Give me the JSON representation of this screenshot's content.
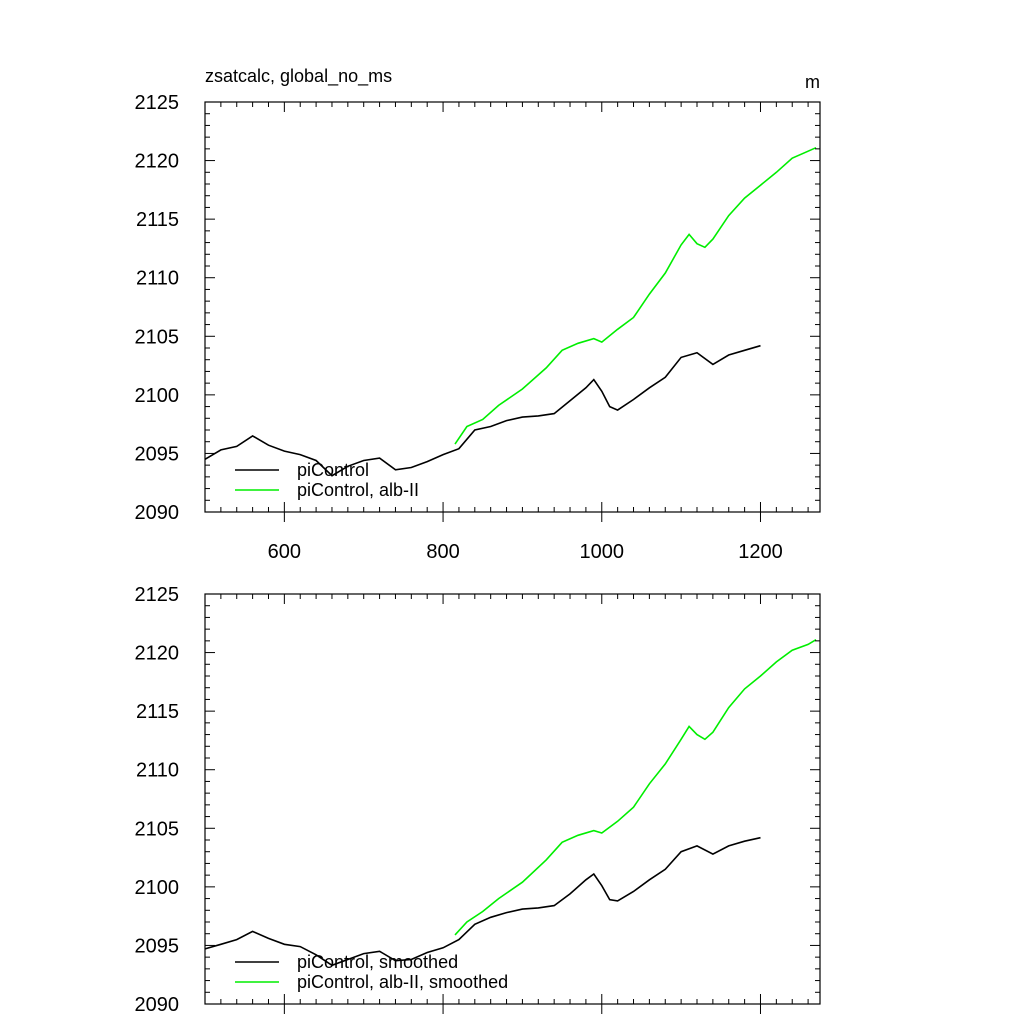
{
  "figure": {
    "title_left": "zsatcalc, global_no_ms",
    "title_right": "m"
  },
  "colors": {
    "piControl": "#000000",
    "alb_II": "#00ee00",
    "axis": "#000000"
  },
  "chart_data": [
    {
      "type": "line",
      "title": "",
      "xlabel": "",
      "ylabel": "",
      "xlim": [
        500,
        1275
      ],
      "ylim": [
        2090,
        2125
      ],
      "xticks": [
        600,
        800,
        1000,
        1200
      ],
      "yticks": [
        2090,
        2095,
        2100,
        2105,
        2110,
        2115,
        2120,
        2125
      ],
      "show_x_tick_labels": true,
      "grid": false,
      "legend_position": "bottom-left",
      "series": [
        {
          "name": "piControl",
          "color": "#000000",
          "x": [
            500,
            520,
            540,
            560,
            580,
            600,
            620,
            640,
            660,
            680,
            700,
            720,
            740,
            760,
            780,
            800,
            820,
            840,
            860,
            880,
            900,
            920,
            940,
            960,
            980,
            990,
            1000,
            1010,
            1020,
            1040,
            1060,
            1080,
            1100,
            1120,
            1140,
            1160,
            1180,
            1200
          ],
          "y": [
            2094.5,
            2095.3,
            2095.6,
            2096.5,
            2095.7,
            2095.2,
            2094.9,
            2094.4,
            2093.1,
            2093.9,
            2094.4,
            2094.6,
            2093.6,
            2093.8,
            2094.3,
            2094.9,
            2095.4,
            2097.0,
            2097.3,
            2097.8,
            2098.1,
            2098.2,
            2098.4,
            2099.5,
            2100.6,
            2101.3,
            2100.3,
            2099.0,
            2098.7,
            2099.6,
            2100.6,
            2101.5,
            2103.2,
            2103.6,
            2102.6,
            2103.4,
            2103.8,
            2104.2
          ]
        },
        {
          "name": "piControl, alb-II",
          "color": "#00ee00",
          "x": [
            815,
            830,
            850,
            870,
            900,
            930,
            950,
            970,
            990,
            1000,
            1020,
            1040,
            1060,
            1080,
            1100,
            1110,
            1120,
            1130,
            1140,
            1160,
            1180,
            1200,
            1220,
            1240,
            1260,
            1270
          ],
          "y": [
            2095.8,
            2097.3,
            2097.9,
            2099.1,
            2100.5,
            2102.3,
            2103.8,
            2104.4,
            2104.8,
            2104.5,
            2105.6,
            2106.6,
            2108.6,
            2110.4,
            2112.8,
            2113.7,
            2112.9,
            2112.6,
            2113.3,
            2115.3,
            2116.8,
            2117.9,
            2119.0,
            2120.2,
            2120.8,
            2121.1
          ]
        }
      ]
    },
    {
      "type": "line",
      "title": "",
      "xlabel": "",
      "ylabel": "",
      "xlim": [
        500,
        1275
      ],
      "ylim": [
        2090,
        2125
      ],
      "xticks": [
        600,
        800,
        1000,
        1200
      ],
      "yticks": [
        2090,
        2095,
        2100,
        2105,
        2110,
        2115,
        2120,
        2125
      ],
      "show_x_tick_labels": false,
      "grid": false,
      "legend_position": "bottom-left",
      "series": [
        {
          "name": "piControl, smoothed",
          "color": "#000000",
          "x": [
            500,
            520,
            540,
            560,
            580,
            600,
            620,
            640,
            660,
            680,
            700,
            720,
            740,
            760,
            780,
            800,
            820,
            840,
            860,
            880,
            900,
            920,
            940,
            960,
            980,
            990,
            1000,
            1010,
            1020,
            1040,
            1060,
            1080,
            1100,
            1120,
            1140,
            1160,
            1180,
            1200
          ],
          "y": [
            2094.7,
            2095.1,
            2095.5,
            2096.2,
            2095.6,
            2095.1,
            2094.9,
            2094.2,
            2093.3,
            2093.8,
            2094.3,
            2094.5,
            2093.7,
            2093.8,
            2094.4,
            2094.8,
            2095.5,
            2096.8,
            2097.4,
            2097.8,
            2098.1,
            2098.2,
            2098.4,
            2099.4,
            2100.6,
            2101.1,
            2100.1,
            2098.9,
            2098.8,
            2099.6,
            2100.6,
            2101.5,
            2103.0,
            2103.5,
            2102.8,
            2103.5,
            2103.9,
            2104.2
          ]
        },
        {
          "name": "piControl, alb-II, smoothed",
          "color": "#00ee00",
          "x": [
            815,
            830,
            850,
            870,
            900,
            930,
            950,
            970,
            990,
            1000,
            1020,
            1040,
            1060,
            1080,
            1100,
            1110,
            1120,
            1130,
            1140,
            1160,
            1180,
            1200,
            1220,
            1240,
            1260,
            1270
          ],
          "y": [
            2095.9,
            2097.0,
            2097.9,
            2099.0,
            2100.4,
            2102.3,
            2103.8,
            2104.4,
            2104.8,
            2104.6,
            2105.6,
            2106.8,
            2108.8,
            2110.5,
            2112.6,
            2113.7,
            2113.0,
            2112.6,
            2113.2,
            2115.3,
            2116.9,
            2118.0,
            2119.2,
            2120.2,
            2120.7,
            2121.1
          ]
        }
      ]
    }
  ]
}
